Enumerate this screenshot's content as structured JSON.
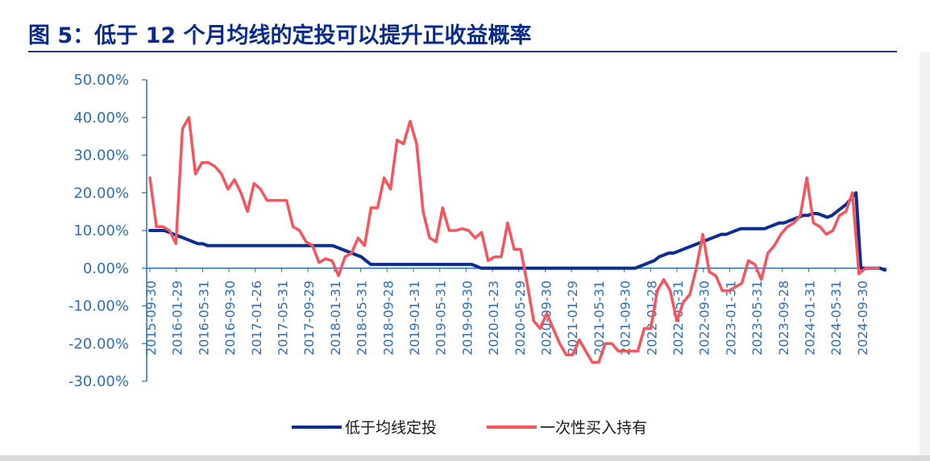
{
  "title": "图 5：低于 12 个月均线的定投可以提升正收益概率",
  "colors": {
    "title": "#0a2a8a",
    "axis": "#2f6fb8",
    "series1": "#0d2d91",
    "series2": "#f5555d"
  },
  "chart_data": {
    "type": "line",
    "title": "",
    "xlabel": "",
    "ylabel": "",
    "ylim": [
      -0.3,
      0.5
    ],
    "y_ticks": [
      "50.00%",
      "40.00%",
      "30.00%",
      "20.00%",
      "10.00%",
      "0.00%",
      "-10.00%",
      "-20.00%",
      "-30.00%"
    ],
    "x_ticks": [
      "2015-09-30",
      "2016-01-29",
      "2016-05-31",
      "2016-09-30",
      "2017-01-26",
      "2017-05-31",
      "2017-09-29",
      "2018-01-31",
      "2018-05-31",
      "2018-09-28",
      "2019-01-31",
      "2019-05-31",
      "2019-09-30",
      "2020-01-23",
      "2020-05-29",
      "2020-09-30",
      "2021-01-29",
      "2021-05-31",
      "2021-09-30",
      "2022-01-28",
      "2022-05-31",
      "2022-09-30",
      "2023-01-31",
      "2023-05-31",
      "2023-09-28",
      "2024-01-31",
      "2024-05-31",
      "2024-09-30"
    ],
    "grid": false,
    "legend": "bottom",
    "series": [
      {
        "name": "低于均线定投",
        "color": "#0d2d91",
        "values": [
          0.1,
          0.1,
          0.1,
          0.1,
          0.095,
          0.09,
          0.085,
          0.08,
          0.075,
          0.07,
          0.065,
          0.065,
          0.06,
          0.06,
          0.06,
          0.06,
          0.06,
          0.06,
          0.06,
          0.06,
          0.06,
          0.06,
          0.06,
          0.06,
          0.06,
          0.06,
          0.06,
          0.06,
          0.06,
          0.06,
          0.06,
          0.06,
          0.06,
          0.06,
          0.06,
          0.06,
          0.06,
          0.06,
          0.06,
          0.055,
          0.05,
          0.045,
          0.04,
          0.035,
          0.03,
          0.02,
          0.01,
          0.01,
          0.01,
          0.01,
          0.01,
          0.01,
          0.01,
          0.01,
          0.01,
          0.01,
          0.01,
          0.01,
          0.01,
          0.01,
          0.01,
          0.01,
          0.01,
          0.01,
          0.01,
          0.01,
          0.01,
          0.01,
          0.005,
          0.0,
          0.0,
          0.0,
          0.0,
          0.0,
          0.0,
          0.0,
          0.0,
          0.0,
          0.0,
          0.0,
          0.0,
          0.0,
          0.0,
          0.0,
          0.0,
          0.0,
          0.0,
          0.0,
          0.0,
          0.0,
          0.0,
          0.0,
          0.0,
          0.0,
          0.0,
          0.0,
          0.0,
          0.0,
          0.0,
          0.0,
          0.0,
          0.0,
          0.005,
          0.01,
          0.015,
          0.02,
          0.03,
          0.035,
          0.04,
          0.04,
          0.045,
          0.05,
          0.055,
          0.06,
          0.065,
          0.07,
          0.075,
          0.08,
          0.085,
          0.09,
          0.09,
          0.095,
          0.1,
          0.105,
          0.105,
          0.105,
          0.105,
          0.105,
          0.105,
          0.11,
          0.115,
          0.12,
          0.12,
          0.125,
          0.13,
          0.135,
          0.14,
          0.14,
          0.145,
          0.145,
          0.14,
          0.135,
          0.14,
          0.15,
          0.16,
          0.17,
          0.185,
          0.2,
          0.0,
          0.0,
          0.0,
          0.0,
          0.0,
          -0.005
        ]
      },
      {
        "name": "一次性买入持有",
        "color": "#f5555d",
        "values": [
          0.24,
          0.11,
          0.11,
          0.1,
          0.065,
          0.37,
          0.4,
          0.25,
          0.28,
          0.28,
          0.27,
          0.25,
          0.21,
          0.235,
          0.2,
          0.15,
          0.225,
          0.21,
          0.18,
          0.18,
          0.18,
          0.18,
          0.11,
          0.1,
          0.07,
          0.06,
          0.015,
          0.025,
          0.02,
          -0.02,
          0.03,
          0.04,
          0.08,
          0.06,
          0.16,
          0.16,
          0.24,
          0.21,
          0.34,
          0.33,
          0.39,
          0.33,
          0.15,
          0.08,
          0.07,
          0.16,
          0.1,
          0.1,
          0.105,
          0.1,
          0.08,
          0.095,
          0.02,
          0.03,
          0.03,
          0.12,
          0.05,
          0.05,
          -0.04,
          -0.14,
          -0.16,
          -0.12,
          -0.16,
          -0.2,
          -0.23,
          -0.23,
          -0.19,
          -0.22,
          -0.25,
          -0.25,
          -0.2,
          -0.2,
          -0.22,
          -0.22,
          -0.22,
          -0.22,
          -0.16,
          -0.16,
          -0.06,
          -0.03,
          -0.06,
          -0.14,
          -0.09,
          -0.07,
          0.0,
          0.09,
          -0.01,
          -0.02,
          -0.06,
          -0.06,
          -0.05,
          -0.04,
          0.02,
          0.01,
          -0.03,
          0.04,
          0.06,
          0.09,
          0.11,
          0.12,
          0.14,
          0.24,
          0.12,
          0.11,
          0.09,
          0.1,
          0.14,
          0.15,
          0.2,
          -0.015,
          0.0,
          0.0,
          0.0
        ]
      }
    ]
  }
}
